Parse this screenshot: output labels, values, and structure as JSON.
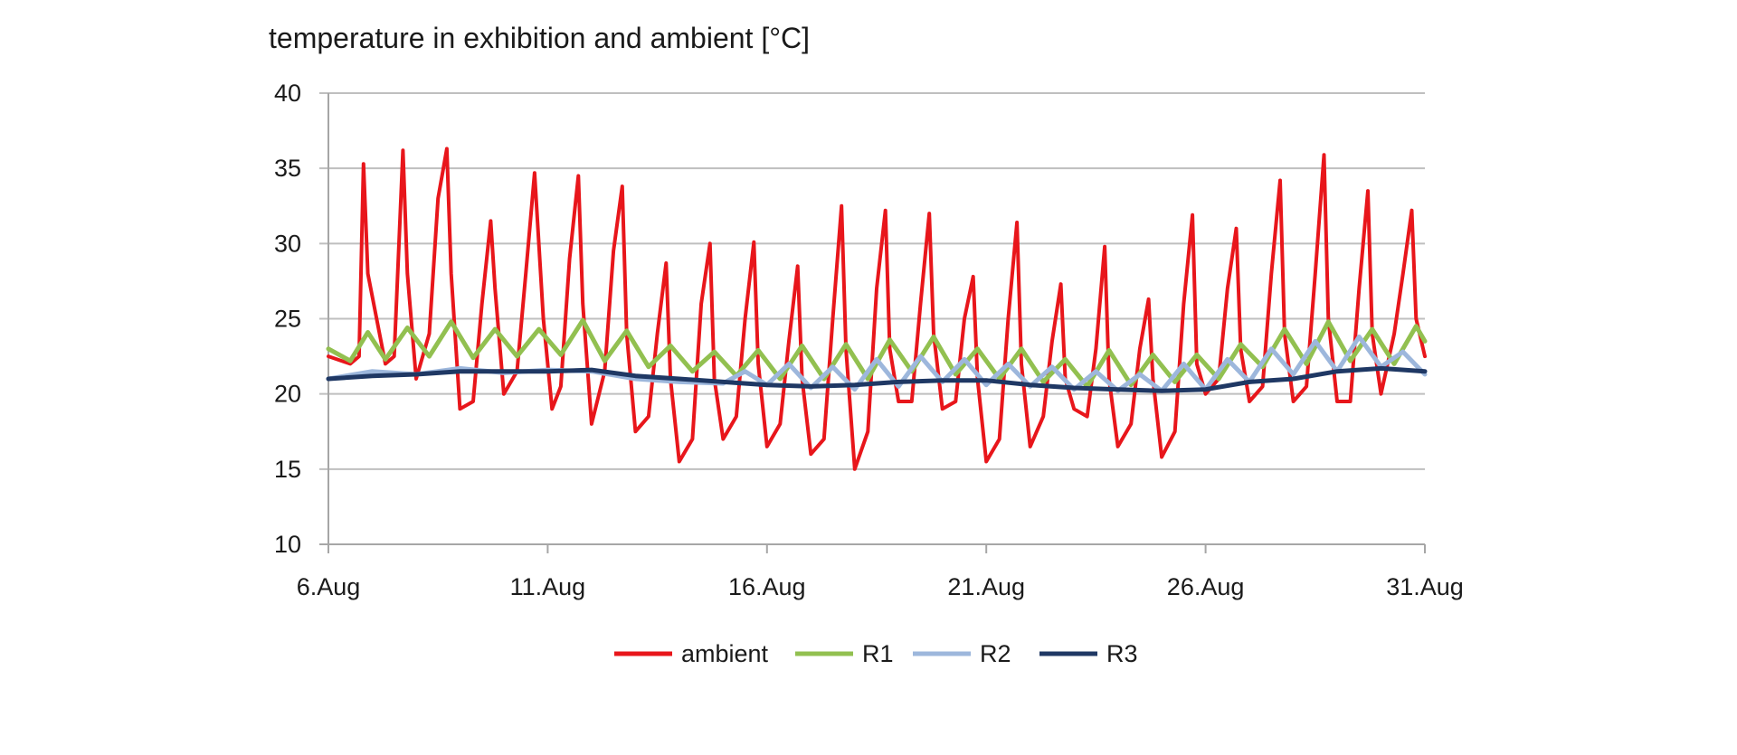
{
  "chart_data": {
    "type": "line",
    "title": "temperature in exhibition and ambient [°C]",
    "xlabel": "",
    "ylabel": "",
    "x_ticks": [
      "6.Aug",
      "11.Aug",
      "16.Aug",
      "21.Aug",
      "26.Aug",
      "31.Aug"
    ],
    "x_tick_days": [
      6,
      11,
      16,
      21,
      26,
      31
    ],
    "xlim": [
      6,
      31
    ],
    "ylim": [
      10,
      40
    ],
    "y_ticks": [
      10,
      15,
      20,
      25,
      30,
      35,
      40
    ],
    "grid": true,
    "legend": "bottom",
    "series": [
      {
        "name": "ambient",
        "color": "#e8161b",
        "x": [
          6.0,
          6.5,
          6.7,
          6.8,
          6.9,
          7.3,
          7.5,
          7.7,
          7.8,
          8.0,
          8.3,
          8.5,
          8.7,
          8.8,
          9.0,
          9.3,
          9.5,
          9.7,
          9.8,
          10.0,
          10.3,
          10.5,
          10.7,
          10.9,
          11.1,
          11.3,
          11.5,
          11.7,
          11.8,
          12.0,
          12.3,
          12.5,
          12.7,
          12.8,
          13.0,
          13.3,
          13.5,
          13.7,
          13.8,
          14.0,
          14.3,
          14.5,
          14.7,
          14.8,
          15.0,
          15.3,
          15.5,
          15.7,
          15.8,
          16.0,
          16.3,
          16.5,
          16.7,
          16.8,
          17.0,
          17.3,
          17.5,
          17.7,
          17.8,
          18.0,
          18.3,
          18.5,
          18.7,
          18.8,
          19.0,
          19.3,
          19.5,
          19.7,
          19.8,
          20.0,
          20.3,
          20.5,
          20.7,
          20.8,
          21.0,
          21.3,
          21.5,
          21.7,
          21.8,
          22.0,
          22.3,
          22.5,
          22.7,
          22.8,
          23.0,
          23.3,
          23.5,
          23.7,
          23.8,
          24.0,
          24.3,
          24.5,
          24.7,
          24.8,
          25.0,
          25.3,
          25.5,
          25.7,
          25.8,
          26.0,
          26.3,
          26.5,
          26.7,
          26.8,
          27.0,
          27.3,
          27.5,
          27.7,
          27.8,
          28.0,
          28.3,
          28.5,
          28.7,
          28.8,
          29.0,
          29.3,
          29.5,
          29.7,
          29.8,
          30.0,
          30.3,
          30.5,
          30.7,
          30.8,
          31.0
        ],
        "y": [
          22.5,
          22.0,
          22.5,
          35.3,
          28.0,
          22.0,
          22.5,
          36.2,
          28.0,
          21.0,
          24.0,
          33.0,
          36.3,
          28.0,
          19.0,
          19.5,
          26.0,
          31.5,
          27.0,
          20.0,
          21.5,
          28.0,
          34.7,
          25.0,
          19.0,
          20.5,
          29.0,
          34.5,
          26.0,
          18.0,
          21.5,
          29.5,
          33.8,
          24.0,
          17.5,
          18.5,
          24.0,
          28.7,
          21.0,
          15.5,
          17.0,
          26.0,
          30.0,
          21.0,
          17.0,
          18.5,
          25.0,
          30.1,
          22.0,
          16.5,
          18.0,
          23.5,
          28.5,
          21.0,
          16.0,
          17.0,
          25.0,
          32.5,
          23.0,
          15.0,
          17.5,
          27.0,
          32.2,
          23.0,
          19.5,
          19.5,
          26.0,
          32.0,
          24.0,
          19.0,
          19.5,
          25.0,
          27.8,
          21.0,
          15.5,
          17.0,
          25.0,
          31.4,
          22.0,
          16.5,
          18.5,
          23.5,
          27.3,
          21.0,
          19.0,
          18.5,
          23.0,
          29.8,
          21.0,
          16.5,
          18.0,
          23.0,
          26.3,
          21.0,
          15.8,
          17.5,
          26.0,
          31.9,
          22.0,
          20.0,
          21.0,
          27.0,
          31.0,
          23.0,
          19.5,
          20.5,
          28.0,
          34.2,
          24.0,
          19.5,
          20.5,
          28.0,
          35.9,
          25.0,
          19.5,
          19.5,
          27.0,
          33.5,
          24.0,
          20.0,
          24.0,
          28.0,
          32.2,
          25.0,
          22.5
        ]
      },
      {
        "name": "R1",
        "color": "#92c050",
        "x": [
          6.0,
          6.5,
          6.9,
          7.3,
          7.8,
          8.3,
          8.8,
          9.3,
          9.8,
          10.3,
          10.8,
          11.3,
          11.8,
          12.3,
          12.8,
          13.3,
          13.8,
          14.3,
          14.8,
          15.3,
          15.8,
          16.3,
          16.8,
          17.3,
          17.8,
          18.3,
          18.8,
          19.3,
          19.8,
          20.3,
          20.8,
          21.3,
          21.8,
          22.3,
          22.8,
          23.3,
          23.8,
          24.3,
          24.8,
          25.3,
          25.8,
          26.3,
          26.8,
          27.3,
          27.8,
          28.3,
          28.8,
          29.3,
          29.8,
          30.3,
          30.8,
          31.0
        ],
        "y": [
          23.0,
          22.2,
          24.1,
          22.3,
          24.4,
          22.5,
          24.8,
          22.4,
          24.3,
          22.5,
          24.3,
          22.6,
          24.9,
          22.2,
          24.2,
          21.8,
          23.2,
          21.5,
          22.8,
          21.2,
          22.9,
          21.0,
          23.2,
          21.0,
          23.3,
          21.0,
          23.6,
          21.5,
          23.8,
          21.3,
          23.0,
          21.0,
          23.0,
          20.8,
          22.3,
          20.5,
          22.9,
          20.6,
          22.6,
          20.8,
          22.6,
          21.0,
          23.3,
          21.8,
          24.3,
          22.0,
          24.8,
          22.2,
          24.3,
          22.0,
          24.5,
          23.5
        ]
      },
      {
        "name": "R2",
        "color": "#9db7dc",
        "x": [
          6.0,
          7.0,
          8.0,
          9.0,
          10.0,
          11.0,
          12.0,
          13.0,
          14.0,
          15.0,
          15.5,
          16.0,
          16.5,
          17.0,
          17.5,
          18.0,
          18.5,
          19.0,
          19.5,
          20.0,
          20.5,
          21.0,
          21.5,
          22.0,
          22.5,
          23.0,
          23.5,
          24.0,
          24.5,
          25.0,
          25.5,
          26.0,
          26.5,
          27.0,
          27.5,
          28.0,
          28.5,
          29.0,
          29.5,
          30.0,
          30.5,
          31.0
        ],
        "y": [
          21.0,
          21.5,
          21.3,
          21.7,
          21.4,
          21.6,
          21.5,
          21.0,
          20.8,
          20.7,
          21.5,
          20.6,
          22.0,
          20.4,
          21.8,
          20.3,
          22.3,
          20.5,
          22.5,
          20.8,
          22.3,
          20.6,
          22.0,
          20.5,
          21.8,
          20.3,
          21.5,
          20.2,
          21.3,
          20.2,
          22.0,
          20.3,
          22.3,
          20.8,
          23.0,
          21.3,
          23.5,
          21.5,
          23.8,
          21.8,
          22.8,
          21.3
        ]
      },
      {
        "name": "R3",
        "color": "#1f3864",
        "x": [
          6.0,
          7.0,
          8.0,
          9.0,
          10.0,
          11.0,
          12.0,
          13.0,
          14.0,
          15.0,
          16.0,
          17.0,
          18.0,
          19.0,
          20.0,
          21.0,
          22.0,
          23.0,
          24.0,
          25.0,
          26.0,
          27.0,
          28.0,
          29.0,
          30.0,
          31.0
        ],
        "y": [
          21.0,
          21.2,
          21.3,
          21.5,
          21.5,
          21.5,
          21.6,
          21.2,
          21.0,
          20.8,
          20.6,
          20.5,
          20.6,
          20.8,
          20.9,
          20.9,
          20.6,
          20.4,
          20.3,
          20.2,
          20.3,
          20.8,
          21.0,
          21.5,
          21.7,
          21.5
        ]
      }
    ]
  }
}
